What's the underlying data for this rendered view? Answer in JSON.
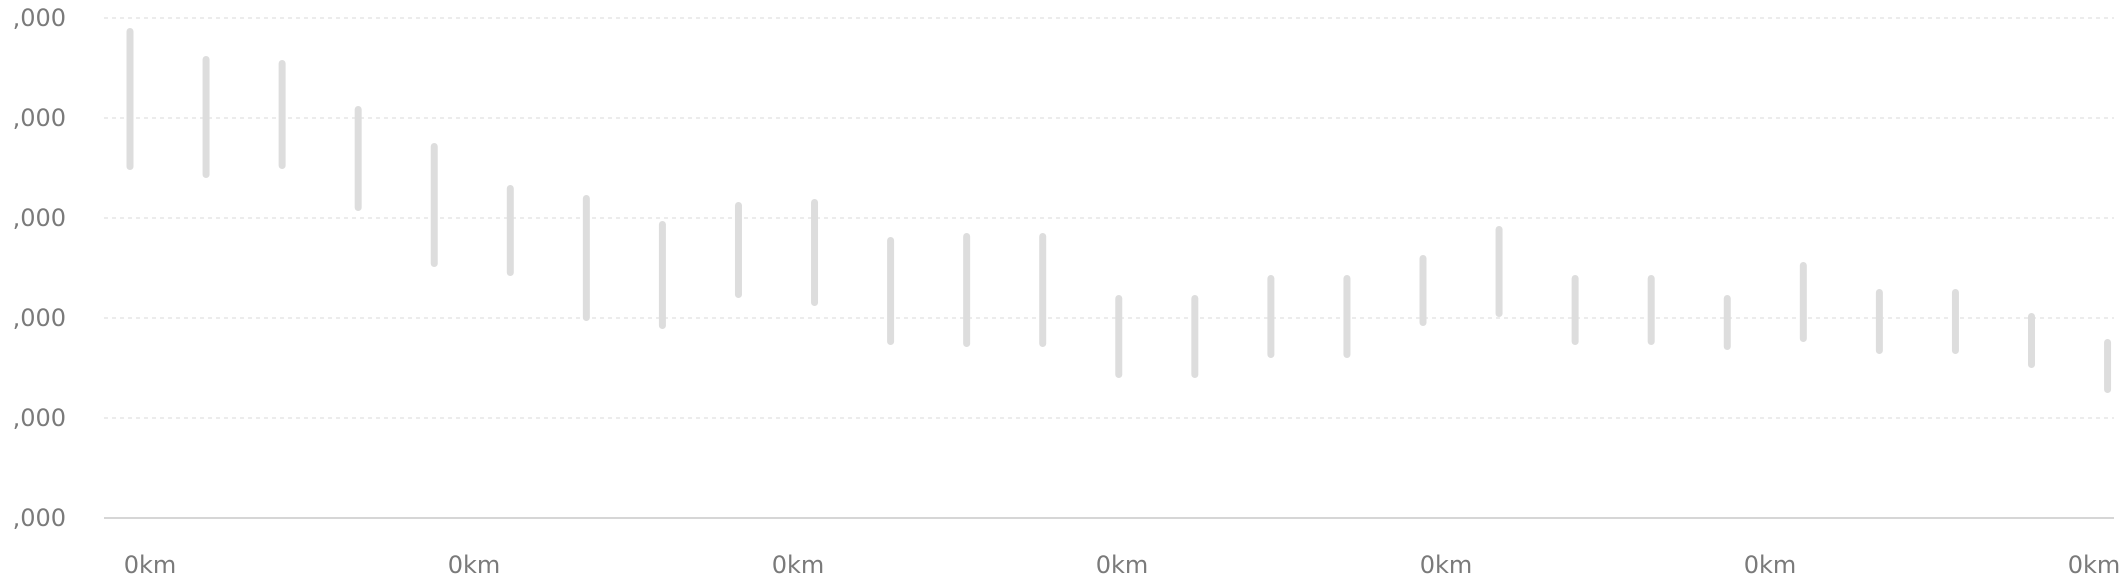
{
  "chart_data": {
    "type": "range-bar",
    "title": "",
    "xlabel": "",
    "ylabel": "",
    "y_tick_labels": [
      ",000",
      ",000",
      ",000",
      ",000",
      ",000",
      ",000"
    ],
    "x_tick_labels": [
      "0km",
      "0km",
      "0km",
      "0km",
      "0km",
      "0km",
      "0km"
    ],
    "ylim": [
      0,
      5
    ],
    "grid": true,
    "series": [
      {
        "ranges": [
          [
            3.48,
            4.9
          ],
          [
            3.4,
            4.62
          ],
          [
            3.49,
            4.58
          ],
          [
            3.07,
            4.12
          ],
          [
            2.51,
            3.75
          ],
          [
            2.42,
            3.33
          ],
          [
            1.97,
            3.23
          ],
          [
            1.89,
            2.97
          ],
          [
            2.2,
            3.16
          ],
          [
            2.12,
            3.19
          ],
          [
            1.73,
            2.81
          ],
          [
            1.71,
            2.85
          ],
          [
            1.71,
            2.85
          ],
          [
            1.4,
            2.23
          ],
          [
            1.4,
            2.23
          ],
          [
            1.6,
            2.43
          ],
          [
            1.6,
            2.43
          ],
          [
            1.92,
            2.63
          ],
          [
            2.01,
            2.92
          ],
          [
            1.73,
            2.43
          ],
          [
            1.73,
            2.43
          ],
          [
            1.68,
            2.23
          ],
          [
            1.76,
            2.56
          ],
          [
            1.64,
            2.29
          ],
          [
            1.64,
            2.29
          ],
          [
            1.5,
            2.05
          ],
          [
            1.25,
            1.79
          ]
        ]
      }
    ],
    "colors": {
      "bar": "#dddddd",
      "grid": "#e6e6e6",
      "axis": "#d6d6d6",
      "text": "#7a7a7a"
    }
  }
}
